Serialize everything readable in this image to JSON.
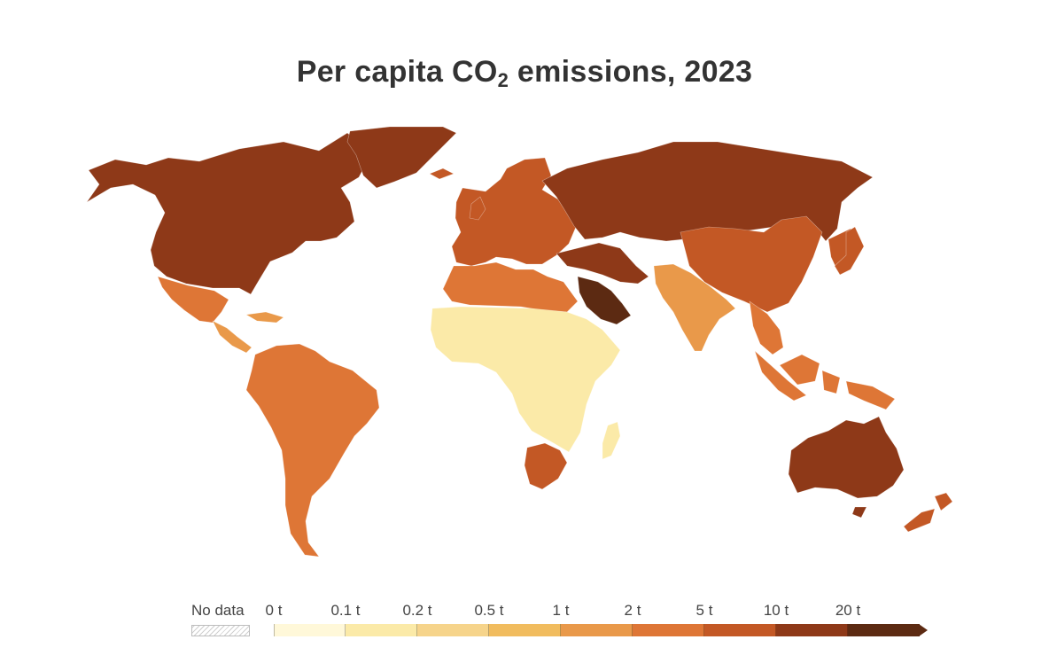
{
  "title": {
    "main": "Per capita CO",
    "subscript": "2",
    "suffix": " emissions, 2023"
  },
  "legend": {
    "no_data_label": "No data",
    "bins": [
      {
        "label": "0 t",
        "color": "#fff8d9"
      },
      {
        "label": "0.1 t",
        "color": "#fbeaa8"
      },
      {
        "label": "0.2 t",
        "color": "#f6d48b"
      },
      {
        "label": "0.5 t",
        "color": "#f1bc5e"
      },
      {
        "label": "1 t",
        "color": "#e9994a"
      },
      {
        "label": "2 t",
        "color": "#de7636"
      },
      {
        "label": "5 t",
        "color": "#c35825"
      },
      {
        "label": "10 t",
        "color": "#8e3918"
      },
      {
        "label": "20 t",
        "color": "#5c2a12"
      }
    ]
  },
  "map_regions": [
    {
      "name": "North America",
      "tier": "10-20 t",
      "color": "#8e3918"
    },
    {
      "name": "Greenland",
      "tier": "10-20 t",
      "color": "#8e3918"
    },
    {
      "name": "Mexico",
      "tier": "2-5 t",
      "color": "#de7636"
    },
    {
      "name": "Central America",
      "tier": "1-2 t",
      "color": "#e9994a"
    },
    {
      "name": "South America",
      "tier": "2-5 t",
      "color": "#de7636"
    },
    {
      "name": "Europe",
      "tier": "5-10 t",
      "color": "#c35825"
    },
    {
      "name": "Russia",
      "tier": "10-20 t",
      "color": "#8e3918"
    },
    {
      "name": "Middle East",
      "tier": "20 t+",
      "color": "#5c2a12"
    },
    {
      "name": "China",
      "tier": "5-10 t",
      "color": "#c35825"
    },
    {
      "name": "India",
      "tier": "1-2 t",
      "color": "#e9994a"
    },
    {
      "name": "Southeast Asia",
      "tier": "2-5 t",
      "color": "#de7636"
    },
    {
      "name": "North Africa",
      "tier": "2-5 t",
      "color": "#de7636"
    },
    {
      "name": "Sub-Saharan Africa",
      "tier": "0-0.5 t",
      "color": "#fbeaa8"
    },
    {
      "name": "Southern Africa",
      "tier": "5-10 t",
      "color": "#c35825"
    },
    {
      "name": "Australia",
      "tier": "10-20 t",
      "color": "#8e3918"
    },
    {
      "name": "New Zealand",
      "tier": "5-10 t",
      "color": "#c35825"
    }
  ]
}
